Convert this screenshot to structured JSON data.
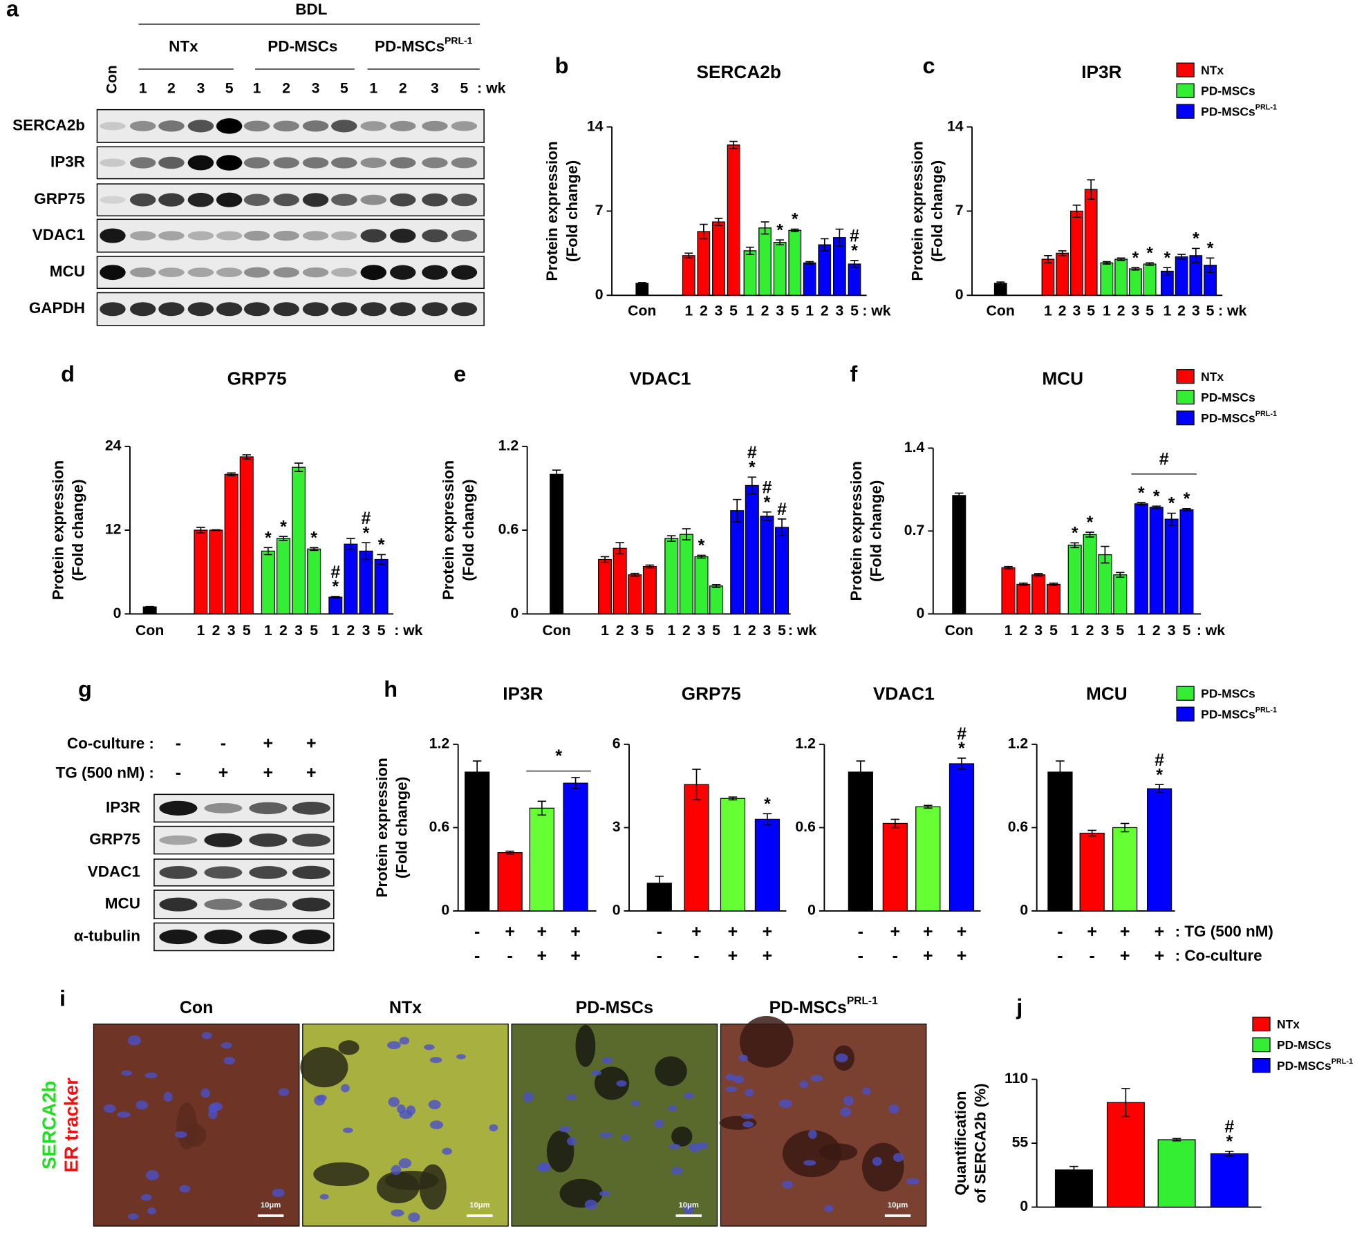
{
  "panel_labels": [
    "a",
    "b",
    "c",
    "d",
    "e",
    "f",
    "g",
    "h",
    "i",
    "j"
  ],
  "blot_a": {
    "group_header": "BDL",
    "groups": [
      {
        "name": "NTx"
      },
      {
        "name": "PD-MSCs"
      },
      {
        "name": "PD-MSCs",
        "superscript": "PRL-1"
      }
    ],
    "lanes": [
      "Con",
      "1",
      "2",
      "3",
      "5",
      "1",
      "2",
      "3",
      "5",
      "1",
      "2",
      "3",
      "5"
    ],
    "lane_unit": ": wk",
    "rows": [
      "SERCA2b",
      "IP3R",
      "GRP75",
      "VDAC1",
      "MCU",
      "GAPDH"
    ]
  },
  "blot_g": {
    "conditions": [
      {
        "label": "Co-culture :",
        "signs": [
          "-",
          "-",
          "+",
          "+"
        ]
      },
      {
        "label": "TG (500 nM) :",
        "signs": [
          "-",
          "+",
          "+",
          "+"
        ]
      }
    ],
    "rows": [
      "IP3R",
      "GRP75",
      "VDAC1",
      "MCU",
      "α-tubulin"
    ]
  },
  "h_conditions": [
    {
      "label": ": TG (500 nM)",
      "signs": [
        "-",
        "+",
        "+",
        "+"
      ]
    },
    {
      "label": ": Co-culture",
      "signs": [
        "-",
        "-",
        "+",
        "+"
      ]
    }
  ],
  "images_i": {
    "titles": [
      {
        "name": "Con"
      },
      {
        "name": "NTx"
      },
      {
        "name": "PD-MSCs"
      },
      {
        "name": "PD-MSCs",
        "superscript": "PRL-1"
      }
    ],
    "stain_labels": [
      {
        "text": "SERCA2b",
        "color": "#22dd22"
      },
      {
        "text": "ER tracker",
        "color": "#ee1111"
      }
    ],
    "scale_bar": "10μm"
  },
  "chart_data": [
    {
      "type": "bar",
      "title": "SERCA2b",
      "ylabel": [
        "Protein expression",
        "(Fold change)"
      ],
      "ylim": [
        0,
        14
      ],
      "yticks": [
        0,
        7,
        14
      ],
      "categories": [
        "Con",
        "1",
        "2",
        "3",
        "5",
        "1",
        "2",
        "3",
        "5",
        "1",
        "2",
        "3",
        "5"
      ],
      "x_unit": ": wk",
      "values": [
        1.0,
        3.3,
        5.3,
        6.1,
        12.5,
        3.7,
        5.6,
        4.4,
        5.4,
        2.7,
        4.2,
        4.8,
        2.6
      ],
      "errors": [
        0.05,
        0.2,
        0.6,
        0.3,
        0.3,
        0.3,
        0.5,
        0.2,
        0.1,
        0.1,
        0.5,
        0.7,
        0.3
      ],
      "colors": [
        "#000000",
        "#ff0000",
        "#ff0000",
        "#ff0000",
        "#ff0000",
        "#33ee33",
        "#33ee33",
        "#33ee33",
        "#33ee33",
        "#0000ff",
        "#0000ff",
        "#0000ff",
        "#0000ff"
      ],
      "marks": [
        null,
        null,
        null,
        null,
        null,
        null,
        null,
        [
          "*"
        ],
        [
          "*"
        ],
        null,
        null,
        null,
        [
          "#",
          "*"
        ]
      ]
    },
    {
      "type": "bar",
      "title": "IP3R",
      "ylabel": [
        "Protein expression",
        "(Fold change)"
      ],
      "ylim": [
        0,
        14
      ],
      "yticks": [
        0,
        7,
        14
      ],
      "categories": [
        "Con",
        "1",
        "2",
        "3",
        "5",
        "1",
        "2",
        "3",
        "5",
        "1",
        "2",
        "3",
        "5"
      ],
      "x_unit": ": wk",
      "values": [
        1.0,
        3.0,
        3.5,
        7.0,
        8.8,
        2.7,
        3.0,
        2.2,
        2.6,
        2.0,
        3.2,
        3.3,
        2.5
      ],
      "errors": [
        0.1,
        0.3,
        0.2,
        0.5,
        0.8,
        0.1,
        0.1,
        0.1,
        0.1,
        0.3,
        0.2,
        0.6,
        0.6
      ],
      "colors": [
        "#000000",
        "#ff0000",
        "#ff0000",
        "#ff0000",
        "#ff0000",
        "#33ee33",
        "#33ee33",
        "#33ee33",
        "#33ee33",
        "#0000ff",
        "#0000ff",
        "#0000ff",
        "#0000ff"
      ],
      "marks": [
        null,
        null,
        null,
        null,
        null,
        null,
        null,
        [
          "*"
        ],
        [
          "*"
        ],
        [
          "*"
        ],
        null,
        [
          "*"
        ],
        [
          "*"
        ]
      ],
      "legend": [
        {
          "name": "NTx",
          "color": "#ff0000"
        },
        {
          "name": "PD-MSCs",
          "color": "#33ee33"
        },
        {
          "name": "PD-MSCs",
          "superscript": "PRL-1",
          "color": "#0000ff"
        }
      ]
    },
    {
      "type": "bar",
      "title": "GRP75",
      "ylabel": [
        "Protein expression",
        "(Fold change)"
      ],
      "ylim": [
        0,
        24
      ],
      "yticks": [
        0,
        12,
        24
      ],
      "categories": [
        "Con",
        "1",
        "2",
        "3",
        "5",
        "1",
        "2",
        "3",
        "5",
        "1",
        "2",
        "3",
        "5"
      ],
      "x_unit": ": wk",
      "values": [
        1.0,
        12.0,
        12.0,
        20.0,
        22.5,
        9.0,
        10.8,
        21.0,
        9.3,
        2.4,
        10.0,
        9.0,
        7.8
      ],
      "errors": [
        0.05,
        0.4,
        0.05,
        0.2,
        0.3,
        0.5,
        0.3,
        0.6,
        0.2,
        0.1,
        0.8,
        1.2,
        0.7
      ],
      "colors": [
        "#000000",
        "#ff0000",
        "#ff0000",
        "#ff0000",
        "#ff0000",
        "#33ee33",
        "#33ee33",
        "#33ee33",
        "#33ee33",
        "#0000ff",
        "#0000ff",
        "#0000ff",
        "#0000ff"
      ],
      "marks": [
        null,
        null,
        null,
        null,
        null,
        [
          "*"
        ],
        [
          "*"
        ],
        null,
        [
          "*"
        ],
        [
          "#",
          "*"
        ],
        null,
        [
          "#",
          "*"
        ],
        [
          "*"
        ]
      ]
    },
    {
      "type": "bar",
      "title": "VDAC1",
      "ylabel": [
        "Protein expression",
        "(Fold change)"
      ],
      "ylim": [
        0,
        1.2
      ],
      "yticks": [
        0,
        0.6,
        1.2
      ],
      "categories": [
        "Con",
        "1",
        "2",
        "3",
        "5",
        "1",
        "2",
        "3",
        "5",
        "1",
        "2",
        "3",
        "5"
      ],
      "x_unit": ": wk",
      "values": [
        1.0,
        0.39,
        0.47,
        0.28,
        0.34,
        0.54,
        0.57,
        0.41,
        0.2,
        0.74,
        0.92,
        0.7,
        0.62
      ],
      "errors": [
        0.03,
        0.02,
        0.04,
        0.01,
        0.01,
        0.02,
        0.04,
        0.01,
        0.01,
        0.08,
        0.06,
        0.03,
        0.06
      ],
      "colors": [
        "#000000",
        "#ff0000",
        "#ff0000",
        "#ff0000",
        "#ff0000",
        "#33ee33",
        "#33ee33",
        "#33ee33",
        "#33ee33",
        "#0000ff",
        "#0000ff",
        "#0000ff",
        "#0000ff"
      ],
      "marks": [
        null,
        null,
        null,
        null,
        null,
        null,
        null,
        [
          "*"
        ],
        null,
        null,
        [
          "#",
          "*"
        ],
        [
          "#",
          "*"
        ],
        [
          "#"
        ]
      ]
    },
    {
      "type": "bar",
      "title": "MCU",
      "ylabel": [
        "Protein expression",
        "(Fold change)"
      ],
      "ylim": [
        0,
        1.4
      ],
      "yticks": [
        0,
        0.7,
        1.4
      ],
      "categories": [
        "Con",
        "1",
        "2",
        "3",
        "5",
        "1",
        "2",
        "3",
        "5",
        "1",
        "2",
        "3",
        "5"
      ],
      "x_unit": ": wk",
      "values": [
        1.0,
        0.39,
        0.25,
        0.33,
        0.25,
        0.58,
        0.67,
        0.5,
        0.33,
        0.93,
        0.9,
        0.8,
        0.88
      ],
      "errors": [
        0.02,
        0.01,
        0.01,
        0.01,
        0.01,
        0.02,
        0.02,
        0.07,
        0.02,
        0.01,
        0.01,
        0.05,
        0.01
      ],
      "colors": [
        "#000000",
        "#ff0000",
        "#ff0000",
        "#ff0000",
        "#ff0000",
        "#33ee33",
        "#33ee33",
        "#33ee33",
        "#33ee33",
        "#0000ff",
        "#0000ff",
        "#0000ff",
        "#0000ff"
      ],
      "marks": [
        null,
        null,
        null,
        null,
        null,
        [
          "*"
        ],
        [
          "*"
        ],
        null,
        null,
        [
          "*"
        ],
        [
          "*"
        ],
        [
          "*"
        ],
        [
          "*"
        ]
      ],
      "bracket_label": "#",
      "legend": [
        {
          "name": "NTx",
          "color": "#ff0000"
        },
        {
          "name": "PD-MSCs",
          "color": "#33ee33"
        },
        {
          "name": "PD-MSCs",
          "superscript": "PRL-1",
          "color": "#0000ff"
        }
      ]
    },
    {
      "type": "bar",
      "title": "IP3R",
      "ylabel": [
        "Protein expression",
        "(Fold change)"
      ],
      "ylim": [
        0,
        1.2
      ],
      "yticks": [
        0,
        0.6,
        1.2
      ],
      "values": [
        1.0,
        0.42,
        0.74,
        0.92
      ],
      "errors": [
        0.08,
        0.01,
        0.05,
        0.04
      ],
      "colors": [
        "#000000",
        "#ff0000",
        "#66ff33",
        "#0000ff"
      ],
      "marks": [
        null,
        null,
        null,
        null
      ],
      "bracket_label": "*"
    },
    {
      "type": "bar",
      "title": "GRP75",
      "ylim": [
        0,
        6
      ],
      "yticks": [
        0,
        3,
        6
      ],
      "values": [
        1.0,
        4.55,
        4.05,
        3.3
      ],
      "errors": [
        0.25,
        0.55,
        0.05,
        0.2
      ],
      "colors": [
        "#000000",
        "#ff0000",
        "#66ff33",
        "#0000ff"
      ],
      "marks": [
        null,
        null,
        null,
        [
          "*"
        ]
      ]
    },
    {
      "type": "bar",
      "title": "VDAC1",
      "ylim": [
        0,
        1.2
      ],
      "yticks": [
        0,
        0.6,
        1.2
      ],
      "values": [
        1.0,
        0.63,
        0.75,
        1.06
      ],
      "errors": [
        0.08,
        0.03,
        0.01,
        0.04
      ],
      "colors": [
        "#000000",
        "#ff0000",
        "#66ff33",
        "#0000ff"
      ],
      "marks": [
        null,
        null,
        null,
        [
          "#",
          "*"
        ]
      ]
    },
    {
      "type": "bar",
      "title": "MCU",
      "ylim": [
        0,
        1.2
      ],
      "yticks": [
        0,
        0.6,
        1.2
      ],
      "values": [
        1.0,
        0.56,
        0.6,
        0.88
      ],
      "errors": [
        0.08,
        0.02,
        0.03,
        0.03
      ],
      "colors": [
        "#000000",
        "#ff0000",
        "#66ff33",
        "#0000ff"
      ],
      "marks": [
        null,
        null,
        null,
        [
          "#",
          "*"
        ]
      ],
      "legend": [
        {
          "name": "PD-MSCs",
          "color": "#33ee33"
        },
        {
          "name": "PD-MSCs",
          "superscript": "PRL-1",
          "color": "#0000ff"
        }
      ]
    },
    {
      "type": "bar",
      "ylabel": [
        "Quantification",
        "of SERCA2b (%)"
      ],
      "ylim": [
        0,
        110
      ],
      "yticks": [
        0,
        55,
        110
      ],
      "values": [
        32,
        90,
        58,
        46
      ],
      "errors": [
        3,
        12,
        1,
        2
      ],
      "colors": [
        "#000000",
        "#ff0000",
        "#33ee33",
        "#0000ff"
      ],
      "marks": [
        null,
        null,
        null,
        [
          "#",
          "*"
        ]
      ],
      "legend": [
        {
          "name": "NTx",
          "color": "#ff0000"
        },
        {
          "name": "PD-MSCs",
          "color": "#33ee33"
        },
        {
          "name": "PD-MSCs",
          "superscript": "PRL-1",
          "color": "#0000ff"
        }
      ]
    }
  ]
}
